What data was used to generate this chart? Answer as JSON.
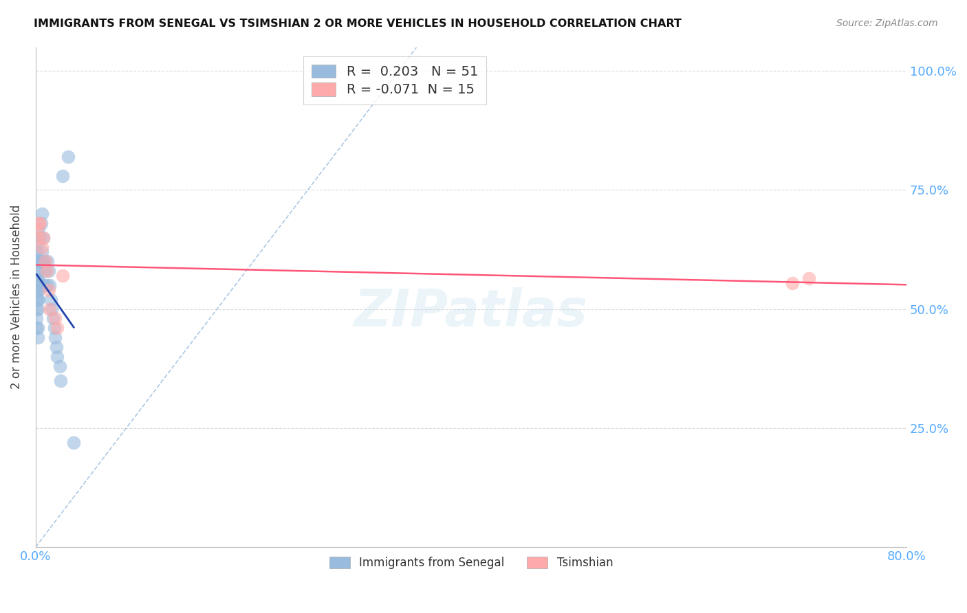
{
  "title": "IMMIGRANTS FROM SENEGAL VS TSIMSHIAN 2 OR MORE VEHICLES IN HOUSEHOLD CORRELATION CHART",
  "source": "Source: ZipAtlas.com",
  "ylabel": "2 or more Vehicles in Household",
  "xlim": [
    0.0,
    0.8
  ],
  "ylim": [
    0.0,
    1.05
  ],
  "blue_color": "#99BBDD",
  "pink_color": "#FFAAAA",
  "blue_edge_color": "#6699CC",
  "pink_edge_color": "#FF8899",
  "blue_R": 0.203,
  "blue_N": 51,
  "pink_R": -0.071,
  "pink_N": 15,
  "legend_label_blue": "Immigrants from Senegal",
  "legend_label_pink": "Tsimshian",
  "watermark": "ZIPatlas",
  "blue_line_color": "#2244AA",
  "pink_line_color": "#FF5577",
  "diag_line_color": "#99BBDD",
  "blue_scatter_x": [
    0.001,
    0.001,
    0.001,
    0.001,
    0.001,
    0.001,
    0.001,
    0.001,
    0.001,
    0.001,
    0.002,
    0.002,
    0.002,
    0.002,
    0.002,
    0.002,
    0.002,
    0.002,
    0.003,
    0.003,
    0.003,
    0.003,
    0.003,
    0.004,
    0.004,
    0.004,
    0.005,
    0.005,
    0.006,
    0.006,
    0.007,
    0.007,
    0.008,
    0.008,
    0.009,
    0.01,
    0.011,
    0.012,
    0.013,
    0.014,
    0.015,
    0.016,
    0.017,
    0.018,
    0.019,
    0.02,
    0.022,
    0.023,
    0.025,
    0.03,
    0.035
  ],
  "blue_scatter_y": [
    0.5,
    0.52,
    0.54,
    0.56,
    0.58,
    0.6,
    0.62,
    0.64,
    0.46,
    0.48,
    0.5,
    0.52,
    0.54,
    0.56,
    0.58,
    0.44,
    0.46,
    0.6,
    0.52,
    0.54,
    0.56,
    0.6,
    0.67,
    0.55,
    0.6,
    0.65,
    0.6,
    0.68,
    0.62,
    0.7,
    0.6,
    0.65,
    0.55,
    0.6,
    0.58,
    0.55,
    0.6,
    0.58,
    0.55,
    0.52,
    0.5,
    0.48,
    0.46,
    0.44,
    0.42,
    0.4,
    0.38,
    0.35,
    0.78,
    0.82,
    0.22
  ],
  "pink_scatter_x": [
    0.001,
    0.002,
    0.003,
    0.004,
    0.006,
    0.007,
    0.009,
    0.01,
    0.012,
    0.013,
    0.018,
    0.02,
    0.025,
    0.695,
    0.71
  ],
  "pink_scatter_y": [
    0.67,
    0.65,
    0.68,
    0.68,
    0.63,
    0.65,
    0.6,
    0.58,
    0.54,
    0.5,
    0.48,
    0.46,
    0.57,
    0.555,
    0.565
  ]
}
